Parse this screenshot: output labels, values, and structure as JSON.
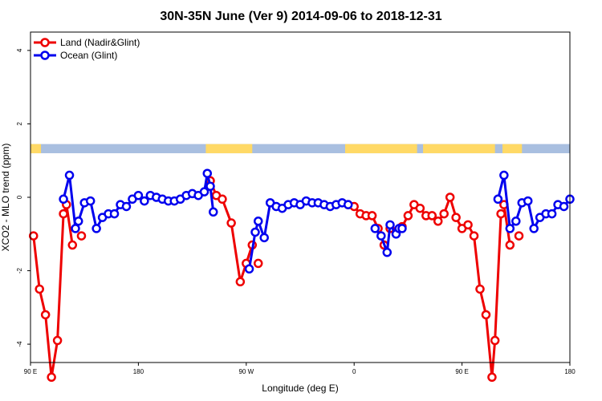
{
  "chart_data": {
    "type": "line",
    "title": "30N-35N June (Ver 9)   2014-09-06 to 2018-12-31",
    "xlabel": "Longitude (deg E)",
    "ylabel": "XCO2 - MLO trend (ppm)",
    "xlim": [
      90,
      450
    ],
    "ylim": [
      -4.5,
      4.5
    ],
    "x_ticks": [
      {
        "value": 90,
        "label": "90 E"
      },
      {
        "value": 162,
        "label": "180"
      },
      {
        "value": 234,
        "label": "90 W"
      },
      {
        "value": 306,
        "label": "0"
      },
      {
        "value": 378,
        "label": "90 E"
      },
      {
        "value": 450,
        "label": "180"
      }
    ],
    "y_ticks": [
      {
        "value": -4,
        "label": "-4"
      },
      {
        "value": -2,
        "label": "-2"
      },
      {
        "value": 0,
        "label": "0"
      },
      {
        "value": 2,
        "label": "2"
      },
      {
        "value": 4,
        "label": "4"
      }
    ],
    "legend_position": "top-left",
    "series": [
      {
        "name": "Land (Nadir&Glint)",
        "color": "#ee0000",
        "segments": [
          {
            "x": [
              92,
              96,
              100,
              104,
              108,
              112,
              114,
              118
            ],
            "y": [
              -1.05,
              -2.5,
              -3.2,
              -4.9,
              -3.9,
              -0.45,
              -0.2,
              -1.3
            ]
          },
          {
            "x": [
              124
            ],
            "y": [
              -1.05
            ]
          },
          {
            "x": [
              210,
              214,
              218,
              224,
              230,
              234,
              238
            ],
            "y": [
              0.45,
              0.05,
              -0.05,
              -0.7,
              -2.3,
              -1.8,
              -1.3
            ]
          },
          {
            "x": [
              242
            ],
            "y": [
              -1.8
            ]
          },
          {
            "x": [
              302,
              306,
              310,
              314,
              318,
              322,
              326
            ],
            "y": [
              -0.2,
              -0.25,
              -0.45,
              -0.5,
              -0.5,
              -0.85,
              -1.3
            ]
          },
          {
            "x": [
              330
            ],
            "y": [
              -0.85
            ]
          },
          {
            "x": [
              338,
              342,
              346,
              350,
              354,
              358,
              362,
              366,
              370,
              374,
              378,
              382,
              386,
              390,
              394,
              398,
              400,
              404
            ],
            "y": [
              -0.8,
              -0.5,
              -0.2,
              -0.3,
              -0.5,
              -0.5,
              -0.65,
              -0.45,
              0.0,
              -0.55,
              -0.85,
              -0.75,
              -1.05,
              -2.5,
              -3.2,
              -4.9,
              -3.9,
              -0.45
            ]
          },
          {
            "x": [
              406,
              410
            ],
            "y": [
              -0.2,
              -1.3
            ]
          },
          {
            "x": [
              416
            ],
            "y": [
              -1.05
            ]
          }
        ]
      },
      {
        "name": "Ocean (Glint)",
        "color": "#0000ee",
        "segments": [
          {
            "x": [
              112,
              116,
              120,
              122,
              126,
              130,
              134,
              138,
              142,
              146,
              150,
              154,
              158,
              162,
              166,
              170,
              174,
              178,
              182,
              186,
              190,
              194,
              198,
              202,
              206,
              208,
              210,
              212
            ],
            "y": [
              -0.05,
              0.6,
              -0.85,
              -0.65,
              -0.15,
              -0.1,
              -0.85,
              -0.55,
              -0.45,
              -0.45,
              -0.2,
              -0.25,
              -0.05,
              0.05,
              -0.1,
              0.05,
              0.0,
              -0.05,
              -0.1,
              -0.1,
              -0.05,
              0.05,
              0.1,
              0.05,
              0.15,
              0.65,
              0.3,
              -0.4
            ]
          },
          {
            "x": [
              236,
              240,
              242,
              246,
              250,
              254,
              258,
              262,
              266,
              270,
              274,
              278,
              282,
              286,
              290,
              294,
              298,
              302
            ],
            "y": [
              -1.95,
              -0.95,
              -0.65,
              -1.1,
              -0.15,
              -0.25,
              -0.3,
              -0.2,
              -0.15,
              -0.2,
              -0.1,
              -0.15,
              -0.15,
              -0.2,
              -0.25,
              -0.2,
              -0.15,
              -0.2
            ]
          },
          {
            "x": [
              320,
              324,
              328,
              330,
              334,
              336,
              338
            ],
            "y": [
              -0.85,
              -1.05,
              -1.5,
              -0.75,
              -1.0,
              -0.85,
              -0.85
            ]
          },
          {
            "x": [
              402,
              406,
              410,
              414,
              418,
              422,
              426,
              430,
              434,
              438,
              442,
              446,
              450
            ],
            "y": [
              -0.05,
              0.6,
              -0.85,
              -0.65,
              -0.15,
              -0.1,
              -0.85,
              -0.55,
              -0.45,
              -0.45,
              -0.2,
              -0.25,
              -0.05
            ]
          }
        ]
      }
    ],
    "land_mask_strip": {
      "y_range": [
        1.2,
        1.45
      ],
      "land_color": "#ffd966",
      "ocean_color": "#a9bfe0",
      "land_x_ranges": [
        [
          90,
          97
        ],
        [
          207,
          238
        ],
        [
          300,
          348
        ],
        [
          352,
          400
        ],
        [
          405,
          418
        ]
      ]
    }
  }
}
